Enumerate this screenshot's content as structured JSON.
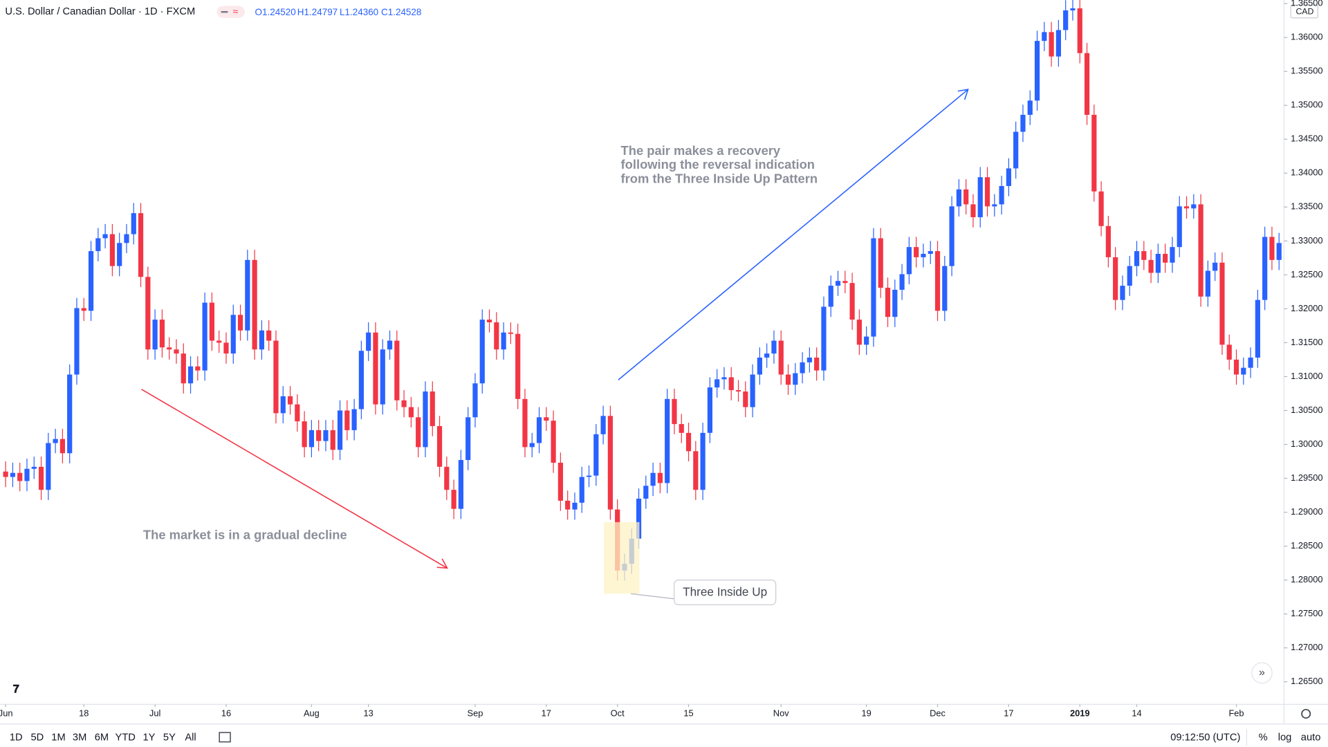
{
  "header": {
    "symbol": "U.S. Dollar / Canadian Dollar · 1D · FXCM",
    "ohlc": [
      "O1.24520",
      "H1.24797",
      "L1.24360",
      "C1.24528"
    ]
  },
  "toolbar": {
    "ranges": [
      "1D",
      "5D",
      "1M",
      "3M",
      "6M",
      "YTD",
      "1Y",
      "5Y",
      "All"
    ],
    "time": "09:12:50 (UTC)",
    "percent": "%",
    "log": "log",
    "auto": "auto",
    "currency": "CAD"
  },
  "chart_data": {
    "type": "candlestick",
    "up_color": "#2962ff",
    "down_color": "#f23645",
    "grid": false,
    "annotations": {
      "decline": "The market is in a gradual decline",
      "recovery": [
        "The pair makes a recovery",
        "following the reversal indication",
        "from the Three Inside Up Pattern"
      ],
      "pattern": "Three Inside Up"
    },
    "xlim": [
      -0.79,
      179.69
    ],
    "ylim": [
      1.26166,
      1.36553
    ],
    "xticks": [
      {
        "value": 0,
        "label": "Jun"
      },
      {
        "value": 11,
        "label": "18"
      },
      {
        "value": 21,
        "label": "Jul"
      },
      {
        "value": 31,
        "label": "16"
      },
      {
        "value": 43,
        "label": "Aug"
      },
      {
        "value": 51,
        "label": "13"
      },
      {
        "value": 66,
        "label": "Sep"
      },
      {
        "value": 76,
        "label": "17"
      },
      {
        "value": 86,
        "label": "Oct"
      },
      {
        "value": 96,
        "label": "15"
      },
      {
        "value": 109,
        "label": "Nov"
      },
      {
        "value": 121,
        "label": "19"
      },
      {
        "value": 131,
        "label": "Dec"
      },
      {
        "value": 141,
        "label": "17"
      },
      {
        "value": 151,
        "label": "2019"
      },
      {
        "value": 159,
        "label": "14"
      },
      {
        "value": 173,
        "label": "Feb"
      }
    ],
    "yticks": [
      {
        "value": 1.265,
        "label": "1.26500"
      },
      {
        "value": 1.27,
        "label": "1.27000"
      },
      {
        "value": 1.275,
        "label": "1.27500"
      },
      {
        "value": 1.28,
        "label": "1.28000"
      },
      {
        "value": 1.285,
        "label": "1.28500"
      },
      {
        "value": 1.29,
        "label": "1.29000"
      },
      {
        "value": 1.295,
        "label": "1.29500"
      },
      {
        "value": 1.3,
        "label": "1.30000"
      },
      {
        "value": 1.305,
        "label": "1.30500"
      },
      {
        "value": 1.31,
        "label": "1.31000"
      },
      {
        "value": 1.315,
        "label": "1.31500"
      },
      {
        "value": 1.32,
        "label": "1.32000"
      },
      {
        "value": 1.325,
        "label": "1.32500"
      },
      {
        "value": 1.33,
        "label": "1.33000"
      },
      {
        "value": 1.335,
        "label": "1.33500"
      },
      {
        "value": 1.34,
        "label": "1.34000"
      },
      {
        "value": 1.345,
        "label": "1.34500"
      },
      {
        "value": 1.35,
        "label": "1.35000"
      },
      {
        "value": 1.355,
        "label": "1.35500"
      },
      {
        "value": 1.36,
        "label": "1.36000"
      },
      {
        "value": 1.365,
        "label": "1.36500"
      }
    ],
    "close": [
      1.2952,
      1.2958,
      1.2946,
      1.2964,
      1.2967,
      1.2933,
      1.3002,
      1.3008,
      1.2987,
      1.3103,
      1.3201,
      1.3197,
      1.3285,
      1.3304,
      1.331,
      1.3263,
      1.3297,
      1.331,
      1.3341,
      1.3247,
      1.314,
      1.3184,
      1.3143,
      1.314,
      1.3134,
      1.309,
      1.3115,
      1.3109,
      1.3209,
      1.3153,
      1.315,
      1.3134,
      1.3191,
      1.3168,
      1.3272,
      1.314,
      1.3168,
      1.3153,
      1.3046,
      1.3071,
      1.3059,
      1.3034,
      1.2996,
      1.3021,
      1.3005,
      1.3021,
      1.2992,
      1.305,
      1.3021,
      1.3052,
      1.3138,
      1.3165,
      1.3059,
      1.314,
      1.3153,
      1.3065,
      1.3055,
      1.304,
      1.2996,
      1.3078,
      1.3027,
      1.2967,
      1.2933,
      1.2905,
      1.2977,
      1.304,
      1.309,
      1.3184,
      1.318,
      1.314,
      1.3165,
      1.3163,
      1.3067,
      1.2996,
      1.3002,
      1.304,
      1.3035,
      1.2973,
      1.2917,
      1.2904,
      1.2914,
      1.2952,
      1.2954,
      1.3015,
      1.3042,
      1.2904,
      1.2814,
      1.2824,
      1.2861,
      1.292,
      1.2939,
      1.2958,
      1.2943,
      1.3067,
      1.303,
      1.3017,
      1.299,
      1.2933,
      1.3017,
      1.3084,
      1.3096,
      1.3099,
      1.308,
      1.3078,
      1.3055,
      1.3103,
      1.3128,
      1.3134,
      1.3153,
      1.3103,
      1.3088,
      1.3105,
      1.3121,
      1.3128,
      1.3109,
      1.3203,
      1.3234,
      1.3241,
      1.3238,
      1.3184,
      1.3147,
      1.3159,
      1.3304,
      1.3231,
      1.3188,
      1.3228,
      1.3251,
      1.3291,
      1.3276,
      1.3281,
      1.3285,
      1.3197,
      1.3263,
      1.3351,
      1.3376,
      1.3354,
      1.3335,
      1.3394,
      1.3351,
      1.3354,
      1.3381,
      1.3407,
      1.3461,
      1.3486,
      1.3507,
      1.3595,
      1.3608,
      1.3572,
      1.3611,
      1.364,
      1.3643,
      1.3577,
      1.3486,
      1.3373,
      1.3322,
      1.3276,
      1.3213,
      1.3234,
      1.3263,
      1.3285,
      1.3272,
      1.3253,
      1.3281,
      1.3268,
      1.3291,
      1.3351,
      1.3348,
      1.3354,
      1.3218,
      1.3256,
      1.3268,
      1.3147,
      1.3125,
      1.3103,
      1.3113,
      1.3128,
      1.3213,
      1.3306,
      1.3272,
      1.3297
    ],
    "open": [
      1.296,
      1.2952,
      1.2958,
      1.2946,
      1.2964,
      1.2967,
      1.2933,
      1.3002,
      1.3008,
      1.2987,
      1.3103,
      1.3201,
      1.3197,
      1.3285,
      1.3304,
      1.331,
      1.3263,
      1.3297,
      1.331,
      1.3341,
      1.3247,
      1.314,
      1.3184,
      1.3143,
      1.314,
      1.3134,
      1.309,
      1.3115,
      1.3109,
      1.3209,
      1.3153,
      1.315,
      1.3134,
      1.3191,
      1.3168,
      1.3272,
      1.314,
      1.3168,
      1.3153,
      1.3046,
      1.3071,
      1.3059,
      1.3034,
      1.2996,
      1.3021,
      1.3005,
      1.3021,
      1.2992,
      1.305,
      1.3021,
      1.3052,
      1.3138,
      1.3165,
      1.3059,
      1.314,
      1.3153,
      1.3065,
      1.3055,
      1.304,
      1.2996,
      1.3078,
      1.3027,
      1.2967,
      1.2933,
      1.2905,
      1.2977,
      1.304,
      1.309,
      1.3184,
      1.318,
      1.314,
      1.3165,
      1.3163,
      1.3067,
      1.2996,
      1.3002,
      1.304,
      1.3035,
      1.2973,
      1.2917,
      1.2904,
      1.2914,
      1.2952,
      1.2954,
      1.3015,
      1.3042,
      1.2904,
      1.2814,
      1.2824,
      1.2861,
      1.292,
      1.2939,
      1.2958,
      1.2943,
      1.3067,
      1.303,
      1.3017,
      1.299,
      1.2933,
      1.3017,
      1.3084,
      1.3096,
      1.3099,
      1.308,
      1.3078,
      1.3055,
      1.3103,
      1.3128,
      1.3134,
      1.3153,
      1.3103,
      1.3088,
      1.3105,
      1.3121,
      1.3128,
      1.3109,
      1.3203,
      1.3234,
      1.3241,
      1.3238,
      1.3184,
      1.3147,
      1.3159,
      1.3304,
      1.3231,
      1.3188,
      1.3228,
      1.3251,
      1.3291,
      1.3276,
      1.3281,
      1.3285,
      1.3197,
      1.3263,
      1.3351,
      1.3376,
      1.3354,
      1.3335,
      1.3394,
      1.3351,
      1.3354,
      1.3381,
      1.3407,
      1.3461,
      1.3486,
      1.3507,
      1.3595,
      1.3608,
      1.3572,
      1.3611,
      1.364,
      1.3643,
      1.3577,
      1.3486,
      1.3373,
      1.3322,
      1.3276,
      1.3213,
      1.3234,
      1.3263,
      1.3285,
      1.3272,
      1.3253,
      1.3281,
      1.3268,
      1.3291,
      1.3351,
      1.3348,
      1.3354,
      1.3218,
      1.3256,
      1.3268,
      1.3147,
      1.3125,
      1.3103,
      1.3113,
      1.3128,
      1.3213,
      1.3306,
      1.3272
    ],
    "high": [
      1.2975,
      1.2973,
      1.2973,
      1.2979,
      1.2982,
      1.2982,
      1.3017,
      1.3023,
      1.3023,
      1.3118,
      1.3216,
      1.3216,
      1.33,
      1.3319,
      1.3325,
      1.3325,
      1.3312,
      1.3325,
      1.3356,
      1.3356,
      1.3262,
      1.3199,
      1.3199,
      1.3158,
      1.3155,
      1.3149,
      1.313,
      1.313,
      1.3224,
      1.3224,
      1.3168,
      1.3165,
      1.3206,
      1.3206,
      1.3287,
      1.3287,
      1.3183,
      1.3183,
      1.3168,
      1.3086,
      1.3086,
      1.3074,
      1.3049,
      1.3036,
      1.3036,
      1.3036,
      1.3036,
      1.3065,
      1.3065,
      1.3067,
      1.3153,
      1.318,
      1.318,
      1.3155,
      1.3168,
      1.3168,
      1.308,
      1.307,
      1.3055,
      1.3093,
      1.3093,
      1.3042,
      1.2982,
      1.2948,
      1.2992,
      1.3055,
      1.3105,
      1.3199,
      1.3199,
      1.3195,
      1.318,
      1.318,
      1.3178,
      1.3082,
      1.3017,
      1.3055,
      1.3055,
      1.305,
      1.2988,
      1.2932,
      1.2929,
      1.2967,
      1.2969,
      1.303,
      1.3057,
      1.3057,
      1.2919,
      1.2839,
      1.2876,
      1.2935,
      1.2954,
      1.2973,
      1.2973,
      1.3082,
      1.3082,
      1.3045,
      1.3032,
      1.3005,
      1.3032,
      1.3099,
      1.3111,
      1.3114,
      1.3114,
      1.3095,
      1.3093,
      1.3118,
      1.3143,
      1.3149,
      1.3168,
      1.3168,
      1.3118,
      1.312,
      1.3136,
      1.3143,
      1.3143,
      1.3218,
      1.3249,
      1.3256,
      1.3256,
      1.3253,
      1.3199,
      1.3174,
      1.3319,
      1.3319,
      1.3246,
      1.3243,
      1.3266,
      1.3306,
      1.3306,
      1.3296,
      1.33,
      1.33,
      1.3278,
      1.3366,
      1.3391,
      1.3391,
      1.3369,
      1.3409,
      1.3409,
      1.3369,
      1.3396,
      1.3422,
      1.3476,
      1.3501,
      1.3522,
      1.361,
      1.3623,
      1.3623,
      1.3626,
      1.3655,
      1.3658,
      1.3658,
      1.3592,
      1.3501,
      1.3388,
      1.3337,
      1.3291,
      1.3249,
      1.3278,
      1.33,
      1.33,
      1.3287,
      1.3296,
      1.3296,
      1.3306,
      1.3366,
      1.3366,
      1.3369,
      1.3369,
      1.3271,
      1.3283,
      1.3283,
      1.3162,
      1.314,
      1.3128,
      1.3143,
      1.3228,
      1.3321,
      1.3321,
      1.3312
    ],
    "low": [
      1.2937,
      1.2937,
      1.2931,
      1.2931,
      1.2949,
      1.2918,
      1.2918,
      1.2987,
      1.2972,
      1.2972,
      1.3088,
      1.3182,
      1.3182,
      1.327,
      1.3289,
      1.3248,
      1.3248,
      1.3282,
      1.3295,
      1.3232,
      1.3125,
      1.3125,
      1.3128,
      1.3125,
      1.3119,
      1.3075,
      1.3075,
      1.3094,
      1.3094,
      1.3138,
      1.3135,
      1.3119,
      1.3119,
      1.3153,
      1.3153,
      1.3125,
      1.3125,
      1.3138,
      1.3031,
      1.3031,
      1.3044,
      1.3019,
      1.2981,
      1.2981,
      1.299,
      1.299,
      1.2977,
      1.2977,
      1.3006,
      1.3006,
      1.3037,
      1.3123,
      1.3044,
      1.3044,
      1.3125,
      1.305,
      1.304,
      1.3025,
      1.2981,
      1.2981,
      1.3012,
      1.2952,
      1.2918,
      1.289,
      1.289,
      1.2962,
      1.3025,
      1.3075,
      1.3165,
      1.3125,
      1.3125,
      1.3148,
      1.3052,
      1.2981,
      1.2981,
      1.2987,
      1.302,
      1.2958,
      1.2902,
      1.2889,
      1.2889,
      1.2899,
      1.2937,
      1.2939,
      1.3,
      1.2889,
      1.2799,
      1.2799,
      1.2809,
      1.2846,
      1.2905,
      1.2924,
      1.2928,
      1.2928,
      1.3015,
      1.3002,
      1.2975,
      1.2918,
      1.2918,
      1.3002,
      1.3069,
      1.3081,
      1.3065,
      1.3063,
      1.304,
      1.304,
      1.3088,
      1.3113,
      1.3119,
      1.3088,
      1.3073,
      1.3073,
      1.309,
      1.3106,
      1.3094,
      1.3094,
      1.3188,
      1.3219,
      1.3223,
      1.3169,
      1.3132,
      1.3132,
      1.3144,
      1.3216,
      1.3173,
      1.3173,
      1.3213,
      1.3236,
      1.3261,
      1.3261,
      1.3266,
      1.3182,
      1.3182,
      1.3248,
      1.3336,
      1.3339,
      1.332,
      1.332,
      1.3336,
      1.3336,
      1.3339,
      1.3366,
      1.3392,
      1.3446,
      1.3471,
      1.3492,
      1.358,
      1.3557,
      1.3557,
      1.3596,
      1.3625,
      1.3562,
      1.3471,
      1.3358,
      1.3307,
      1.3261,
      1.3198,
      1.3198,
      1.3219,
      1.3248,
      1.3257,
      1.3238,
      1.3238,
      1.3253,
      1.3253,
      1.3276,
      1.3333,
      1.3333,
      1.3203,
      1.3203,
      1.3241,
      1.3132,
      1.311,
      1.3088,
      1.3088,
      1.3098,
      1.3113,
      1.3198,
      1.3257,
      1.3257
    ]
  }
}
